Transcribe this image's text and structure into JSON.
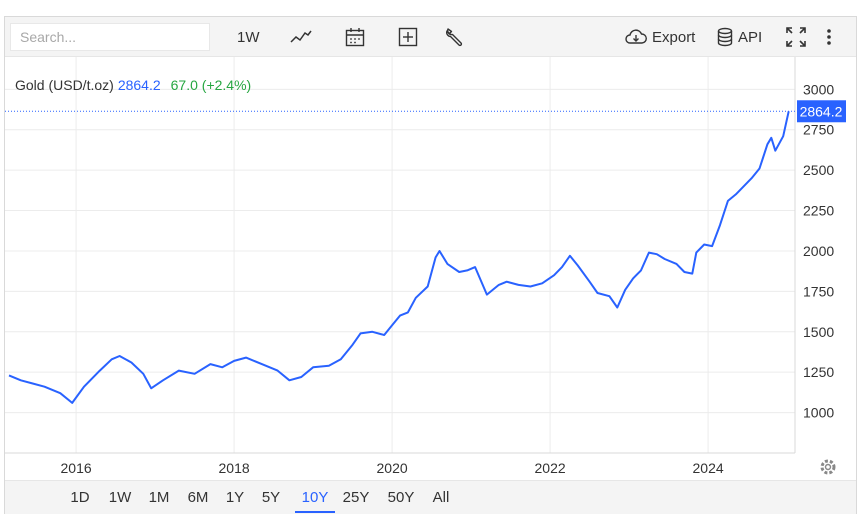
{
  "toolbar": {
    "search_placeholder": "Search...",
    "interval_label": "1W",
    "export_label": "Export",
    "api_label": "API"
  },
  "legend": {
    "name": "Gold (USD/t.oz)",
    "price": "2864.2",
    "change": "67.0 (+2.4%)"
  },
  "ranges": [
    "1D",
    "1W",
    "1M",
    "6M",
    "1Y",
    "5Y",
    "10Y",
    "25Y",
    "50Y",
    "All"
  ],
  "active_range": "10Y",
  "colors": {
    "line": "#2962ff",
    "positive": "#26a641",
    "grid": "#ececec"
  },
  "chart_data": {
    "type": "line",
    "series": [
      {
        "name": "Gold (USD/t.oz)",
        "x": [
          2015.15,
          2015.3,
          2015.45,
          2015.6,
          2015.8,
          2015.95,
          2016.1,
          2016.3,
          2016.45,
          2016.55,
          2016.7,
          2016.85,
          2016.95,
          2017.1,
          2017.3,
          2017.5,
          2017.7,
          2017.85,
          2018.0,
          2018.15,
          2018.35,
          2018.55,
          2018.7,
          2018.85,
          2019.0,
          2019.2,
          2019.35,
          2019.5,
          2019.6,
          2019.75,
          2019.9,
          2020.0,
          2020.1,
          2020.2,
          2020.3,
          2020.45,
          2020.55,
          2020.6,
          2020.7,
          2020.85,
          2020.95,
          2021.05,
          2021.2,
          2021.35,
          2021.45,
          2021.6,
          2021.75,
          2021.9,
          2022.05,
          2022.15,
          2022.25,
          2022.35,
          2022.5,
          2022.6,
          2022.75,
          2022.85,
          2022.95,
          2023.05,
          2023.15,
          2023.25,
          2023.35,
          2023.45,
          2023.6,
          2023.7,
          2023.8,
          2023.85,
          2023.95,
          2024.05,
          2024.15,
          2024.25,
          2024.35,
          2024.45,
          2024.55,
          2024.65,
          2024.75,
          2024.8,
          2024.85,
          2024.95,
          2025.02
        ],
        "values": [
          1230,
          1200,
          1180,
          1160,
          1120,
          1060,
          1160,
          1260,
          1330,
          1350,
          1310,
          1240,
          1150,
          1200,
          1260,
          1240,
          1300,
          1280,
          1320,
          1340,
          1300,
          1260,
          1200,
          1220,
          1280,
          1290,
          1330,
          1420,
          1490,
          1500,
          1480,
          1540,
          1600,
          1620,
          1710,
          1780,
          1960,
          2000,
          1920,
          1870,
          1880,
          1900,
          1730,
          1790,
          1810,
          1790,
          1780,
          1800,
          1850,
          1900,
          1970,
          1910,
          1810,
          1740,
          1720,
          1650,
          1760,
          1830,
          1880,
          1990,
          1980,
          1950,
          1920,
          1870,
          1860,
          1990,
          2040,
          2030,
          2160,
          2310,
          2350,
          2400,
          2450,
          2510,
          2660,
          2700,
          2620,
          2710,
          2864.2
        ]
      }
    ],
    "xlim": [
      2015.1,
      2025.1
    ],
    "ylim": [
      750,
      3200
    ],
    "y_ticks": [
      1000,
      1250,
      1500,
      1750,
      2000,
      2250,
      2500,
      2750,
      3000
    ],
    "x_ticks": [
      2016,
      2018,
      2020,
      2022,
      2024
    ],
    "last_value_label": "2864.2",
    "grid": true
  }
}
